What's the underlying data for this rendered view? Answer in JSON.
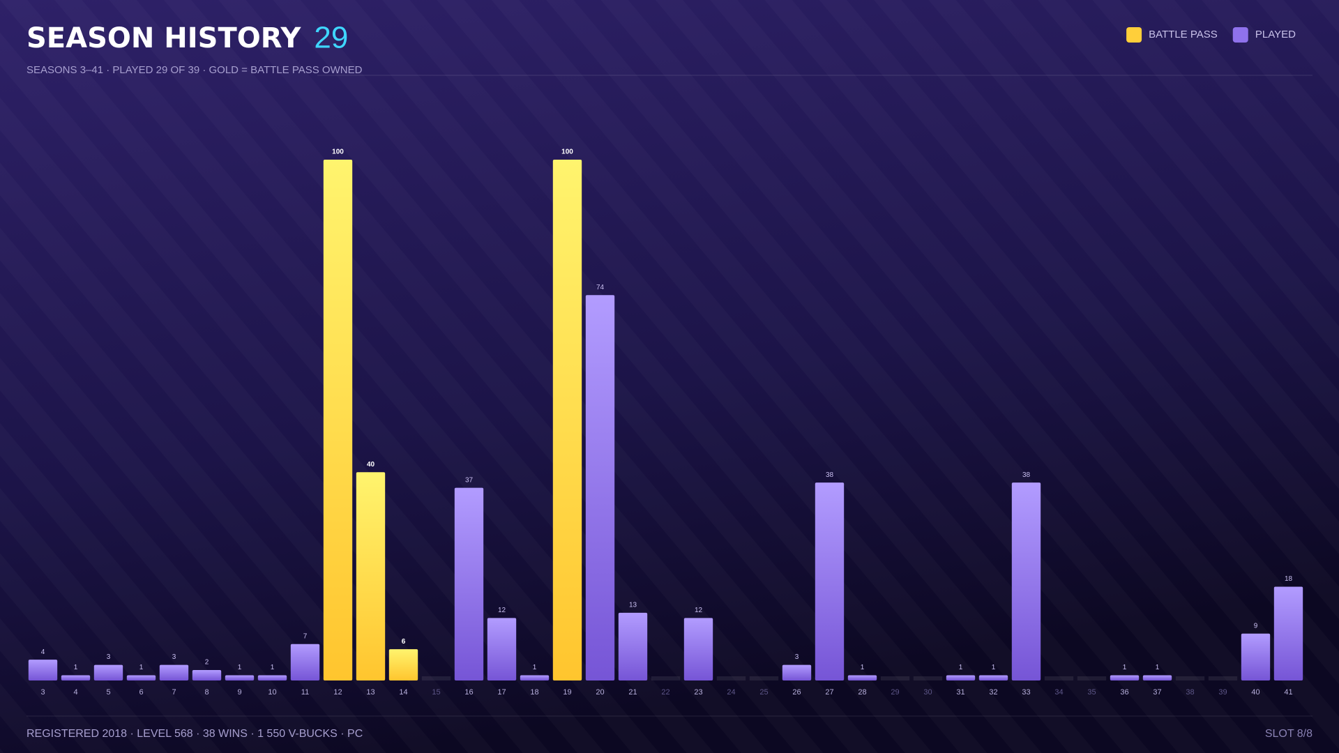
{
  "header": {
    "title": "SEASON HISTORY",
    "count": "29",
    "subtitle": "SEASONS 3–41 · PLAYED 29 OF 39 · GOLD = BATTLE PASS OWNED"
  },
  "legend": [
    {
      "name": "BATTLE PASS",
      "color": "#ffcf3a"
    },
    {
      "name": "PLAYED",
      "color": "#8f72ec"
    }
  ],
  "chart_data": {
    "type": "bar",
    "categories": [
      "3",
      "4",
      "5",
      "6",
      "7",
      "8",
      "9",
      "10",
      "11",
      "12",
      "13",
      "14",
      "15",
      "16",
      "17",
      "18",
      "19",
      "20",
      "21",
      "22",
      "23",
      "24",
      "25",
      "26",
      "27",
      "28",
      "29",
      "30",
      "31",
      "32",
      "33",
      "34",
      "35",
      "36",
      "37",
      "38",
      "39",
      "40",
      "41"
    ],
    "values": [
      4,
      1,
      3,
      1,
      3,
      2,
      1,
      1,
      7,
      100,
      40,
      6,
      null,
      37,
      12,
      1,
      100,
      74,
      13,
      null,
      12,
      null,
      null,
      3,
      38,
      1,
      null,
      null,
      1,
      1,
      38,
      null,
      null,
      1,
      1,
      null,
      null,
      9,
      18
    ],
    "battle_pass": [
      false,
      false,
      false,
      false,
      false,
      false,
      false,
      false,
      false,
      true,
      true,
      true,
      false,
      false,
      false,
      false,
      true,
      false,
      false,
      false,
      false,
      false,
      false,
      false,
      false,
      false,
      false,
      false,
      false,
      false,
      false,
      false,
      false,
      false,
      false,
      false,
      false,
      false,
      false
    ],
    "ylim": [
      0,
      100
    ]
  },
  "footer": {
    "left": "REGISTERED 2018 · LEVEL 568 · 38 WINS · 1 550 V-BUCKS · PC",
    "right": "SLOT 8/8"
  }
}
